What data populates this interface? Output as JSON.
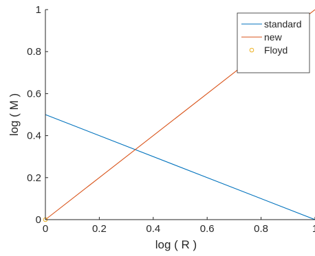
{
  "chart_data": {
    "type": "line",
    "xlabel": "log ( R )",
    "ylabel": "log ( M )",
    "xlim": [
      0,
      1
    ],
    "ylim": [
      0,
      1
    ],
    "xticks": [
      0,
      0.2,
      0.4,
      0.6,
      0.8,
      1
    ],
    "yticks": [
      0,
      0.2,
      0.4,
      0.6,
      0.8,
      1
    ],
    "xtick_labels": [
      "0",
      "0.2",
      "0.4",
      "0.6",
      "0.8",
      "1"
    ],
    "ytick_labels": [
      "0",
      "0.2",
      "0.4",
      "0.6",
      "0.8",
      "1"
    ],
    "grid": false,
    "legend_position": "top-right",
    "series": [
      {
        "name": "standard",
        "type": "line",
        "color": "#0072BD",
        "x": [
          0,
          1
        ],
        "y": [
          0.5,
          0
        ]
      },
      {
        "name": "new",
        "type": "line",
        "color": "#D95319",
        "x": [
          0,
          1
        ],
        "y": [
          0,
          1
        ]
      },
      {
        "name": "Floyd",
        "type": "scatter",
        "marker": "circle",
        "color": "#EDB120",
        "x": [
          0
        ],
        "y": [
          0
        ]
      }
    ]
  }
}
